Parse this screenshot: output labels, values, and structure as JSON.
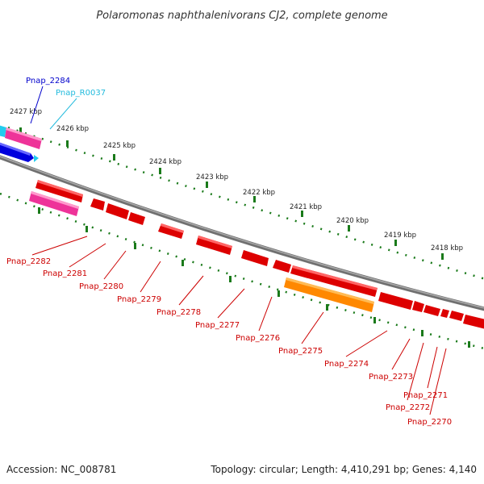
{
  "header": {
    "title": "Polaromonas naphthalenivorans CJ2, complete genome"
  },
  "footer": {
    "accession": "Accession: NC_008781",
    "summary": "Topology: circular; Length: 4,410,291 bp; Genes: 4,140"
  },
  "scale_labels": [
    "2427 kbp",
    "2426 kbp",
    "2425 kbp",
    "2424 kbp",
    "2423 kbp",
    "2422 kbp",
    "2421 kbp",
    "2420 kbp",
    "2419 kbp",
    "2418 kbp"
  ],
  "gene_labels": {
    "top": [
      {
        "text": "Pnap_2284",
        "color": "#0000cc"
      },
      {
        "text": "Pnap_R0037",
        "color": "#22bbdd"
      }
    ],
    "bottom": [
      {
        "text": "Pnap_2282",
        "color": "#cc0000"
      },
      {
        "text": "Pnap_2281",
        "color": "#cc0000"
      },
      {
        "text": "Pnap_2280",
        "color": "#cc0000"
      },
      {
        "text": "Pnap_2279",
        "color": "#cc0000"
      },
      {
        "text": "Pnap_2278",
        "color": "#cc0000"
      },
      {
        "text": "Pnap_2277",
        "color": "#cc0000"
      },
      {
        "text": "Pnap_2276",
        "color": "#cc0000"
      },
      {
        "text": "Pnap_2275",
        "color": "#cc0000"
      },
      {
        "text": "Pnap_2274",
        "color": "#cc0000"
      },
      {
        "text": "Pnap_2273",
        "color": "#cc0000"
      },
      {
        "text": "Pnap_2271",
        "color": "#cc0000"
      },
      {
        "text": "Pnap_2272",
        "color": "#cc0000"
      },
      {
        "text": "Pnap_2270",
        "color": "#cc0000"
      }
    ]
  },
  "colors": {
    "backbone": "#888888",
    "tick": "#1a7a1a",
    "cds": "#ee0000",
    "cds_highlight": "#ee3399",
    "cds_orange": "#ff9900",
    "cds_blue": "#0000dd",
    "rna": "#22ccee"
  }
}
